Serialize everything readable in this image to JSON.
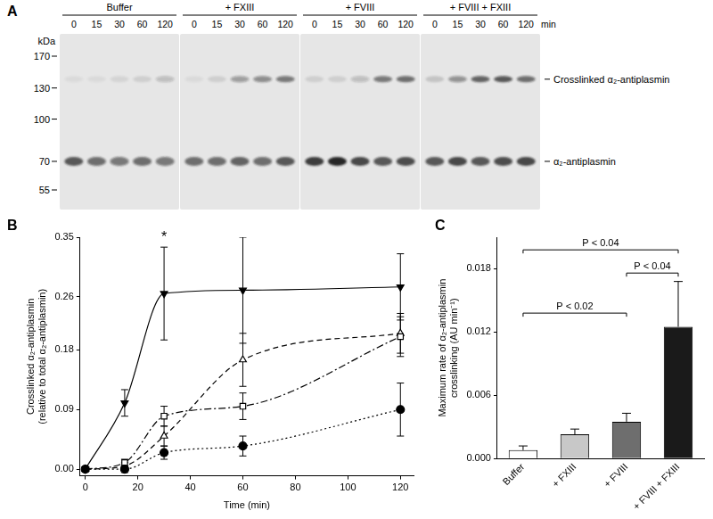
{
  "blot": {
    "panel": "A",
    "mw_unit": "kDa",
    "time_unit": "min",
    "mw_markers": [
      170,
      130,
      100,
      70,
      55
    ],
    "groups": [
      {
        "name": "Buffer",
        "times": [
          0,
          15,
          30,
          60,
          120
        ]
      },
      {
        "name": "+ FXIII",
        "times": [
          0,
          15,
          30,
          60,
          120
        ]
      },
      {
        "name": "+ FVIII",
        "times": [
          0,
          15,
          30,
          60,
          120
        ]
      },
      {
        "name": "+ FVIII + FXIII",
        "times": [
          0,
          15,
          30,
          60,
          120
        ]
      }
    ],
    "bands": [
      {
        "label": "Crosslinked α₂-antiplasmin",
        "kda": 140,
        "intensity": [
          [
            0.05,
            0.05,
            0.08,
            0.1,
            0.2
          ],
          [
            0.05,
            0.1,
            0.35,
            0.45,
            0.55
          ],
          [
            0.1,
            0.1,
            0.2,
            0.55,
            0.6
          ],
          [
            0.15,
            0.4,
            0.65,
            0.7,
            0.6
          ]
        ]
      },
      {
        "label": "α₂-antiplasmin",
        "kda": 70,
        "intensity": [
          [
            0.7,
            0.6,
            0.55,
            0.6,
            0.55
          ],
          [
            0.6,
            0.6,
            0.65,
            0.6,
            0.7
          ],
          [
            0.85,
            0.95,
            0.8,
            0.7,
            0.75
          ],
          [
            0.7,
            0.8,
            0.7,
            0.75,
            0.8
          ]
        ]
      }
    ]
  },
  "chart_data": [
    {
      "panel": "B",
      "type": "line",
      "xlabel": "Time (min)",
      "ylabel": [
        "Crosslinked α₂-antiplasmin",
        "(relative to total α₂-antiplasmin)"
      ],
      "x": [
        0,
        15,
        30,
        60,
        120
      ],
      "xlim": [
        -2,
        125
      ],
      "xticks": [
        0,
        20,
        40,
        60,
        80,
        100,
        120
      ],
      "ylim": [
        -0.01,
        0.35
      ],
      "yticks": [
        {
          "value": 0,
          "label": "0.00"
        },
        0.09,
        0.18,
        0.26,
        0.35
      ],
      "grid": false,
      "series": [
        {
          "color": "#000000",
          "marker": "filled-circle",
          "line_style": "dotted",
          "values": [
            0,
            0,
            0.025,
            0.035,
            0.09
          ],
          "errors": [
            0,
            0.005,
            0.01,
            0.015,
            0.04
          ]
        },
        {
          "color": "#000000",
          "marker": "open-square",
          "line_style": "dashdot",
          "values": [
            0,
            0.01,
            0.08,
            0.095,
            0.2
          ],
          "errors": [
            0,
            0.005,
            0.015,
            0.02,
            0.03
          ]
        },
        {
          "color": "#000000",
          "marker": "open-triangle",
          "line_style": "dashed",
          "values": [
            0,
            0.005,
            0.05,
            0.165,
            0.205
          ],
          "errors": [
            0,
            0.005,
            0.015,
            0.04,
            0.03
          ]
        },
        {
          "color": "#000000",
          "marker": "filled-triangle-down",
          "line_style": "solid",
          "values": [
            0,
            0.1,
            0.265,
            0.27,
            0.275
          ],
          "errors": [
            0,
            0.02,
            0.07,
            0.08,
            0.05
          ]
        }
      ],
      "annotations": [
        {
          "x": 30,
          "y": 0.338,
          "text": "*"
        }
      ]
    },
    {
      "panel": "C",
      "type": "bar",
      "ylabel": [
        "Maximum rate of α₂-antiplasmin",
        "crosslinking (AU min⁻¹)"
      ],
      "categories": [
        "Buffer",
        "+ FXIII",
        "+ FVIII",
        "+ FVIII + FXIII"
      ],
      "values": [
        0.0008,
        0.0023,
        0.0035,
        0.0125
      ],
      "errors": [
        0.0004,
        0.0005,
        0.0008,
        0.0043
      ],
      "colors": [
        "#ffffff",
        "#c8c8c8",
        "#6e6e6e",
        "#1a1a1a"
      ],
      "ylim": [
        0,
        0.021
      ],
      "yticks": [
        {
          "value": 0,
          "label": "0.000"
        },
        0.006,
        0.012,
        0.018
      ],
      "grid": false,
      "brackets": [
        {
          "from": "Buffer",
          "to": "+ FVIII + FXIII",
          "y": 0.0198,
          "text": "P < 0.04"
        },
        {
          "from": "Buffer",
          "to": "+ FVIII",
          "y": 0.0138,
          "text": "P < 0.02"
        },
        {
          "from": "+ FVIII",
          "to": "+ FVIII + FXIII",
          "y": 0.0176,
          "text": "P < 0.04"
        }
      ]
    }
  ]
}
